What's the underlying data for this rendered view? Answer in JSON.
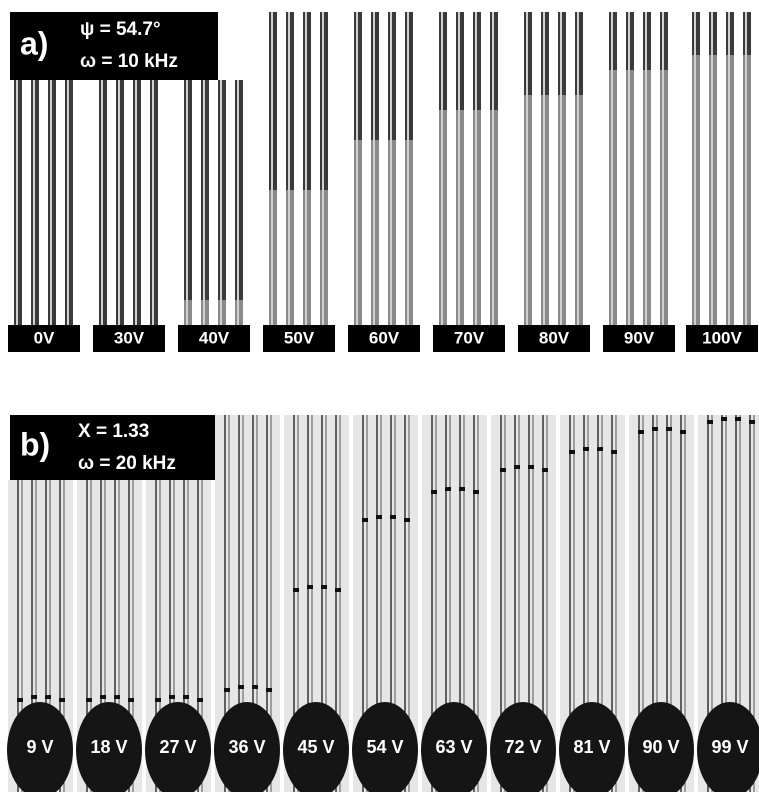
{
  "panel_a": {
    "label": "a)",
    "parameters": [
      "ψ = 54.7°",
      "ω = 10 kHz"
    ],
    "frames": [
      "0V",
      "30V",
      "40V",
      "50V",
      "60V",
      "70V",
      "80V",
      "90V",
      "100V"
    ]
  },
  "panel_b": {
    "label": "b)",
    "parameters": [
      "X = 1.33",
      "ω = 20 kHz"
    ],
    "frames": [
      "9 V",
      "18 V",
      "27 V",
      "36 V",
      "45 V",
      "54 V",
      "63 V",
      "72 V",
      "81 V",
      "90 V",
      "99 V"
    ]
  }
}
